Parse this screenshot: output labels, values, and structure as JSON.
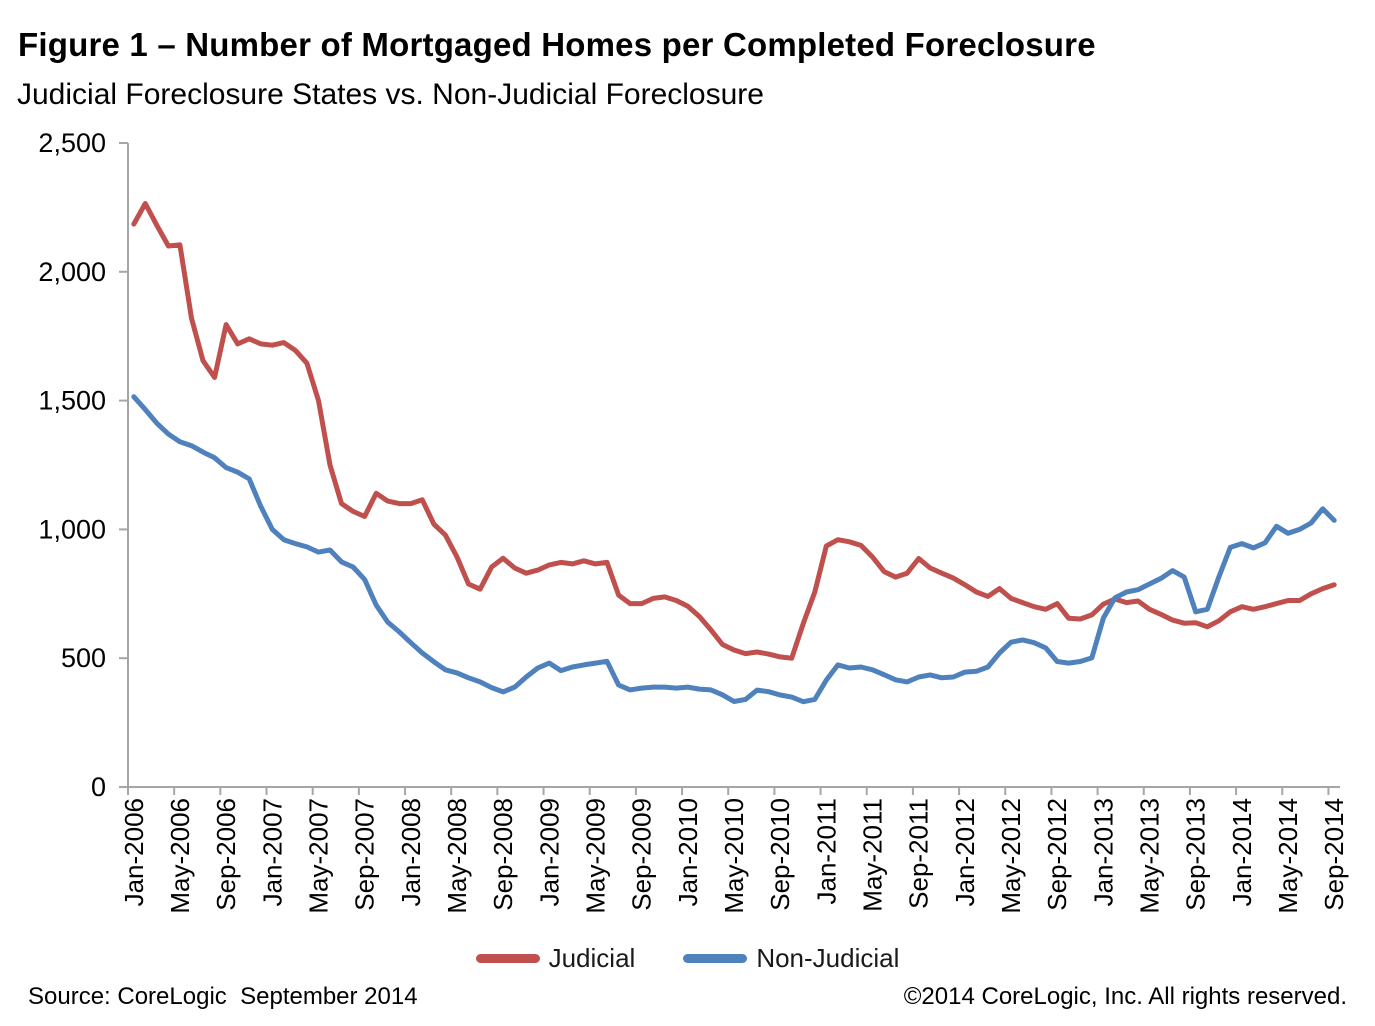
{
  "figure": {
    "title": "Figure 1 – Number of Mortgaged Homes per Completed Foreclosure",
    "subtitle": "Judicial Foreclosure States vs. Non-Judicial Foreclosure"
  },
  "legend": {
    "items": [
      {
        "label": "Judicial",
        "color": "#C0504D"
      },
      {
        "label": "Non-Judicial",
        "color": "#4F81BD"
      }
    ]
  },
  "footer": {
    "source": "Source: CoreLogic  September 2014",
    "copyright": "©2014 CoreLogic, Inc. All rights reserved."
  },
  "chart_data": {
    "type": "line",
    "title": "Figure 1 – Number of Mortgaged Homes per Completed Foreclosure",
    "subtitle": "Judicial Foreclosure States vs. Non-Judicial Foreclosure",
    "grid": false,
    "legend_position": "bottom",
    "axis_color": "#A6A6A6",
    "text_color": "#000000",
    "ylim": [
      0,
      2500
    ],
    "y_tick_values": [
      0,
      500,
      1000,
      1500,
      2000,
      2500
    ],
    "y_tick_labels": [
      "0",
      "500",
      "1,000",
      "1,500",
      "2,000",
      "2,500"
    ],
    "x_tick_every": 4,
    "x_tick_labels": [
      "Jan-2006",
      "May-2006",
      "Sep-2006",
      "Jan-2007",
      "May-2007",
      "Sep-2007",
      "Jan-2008",
      "May-2008",
      "Sep-2008",
      "Jan-2009",
      "May-2009",
      "Sep-2009",
      "Jan-2010",
      "May-2010",
      "Sep-2010",
      "Jan-2011",
      "May-2011",
      "Sep-2011",
      "Jan-2012",
      "May-2012",
      "Sep-2012",
      "Jan-2013",
      "May-2013",
      "Sep-2013",
      "Jan-2014",
      "May-2014",
      "Sep-2014"
    ],
    "categories": [
      "Jan-2006",
      "Feb-2006",
      "Mar-2006",
      "Apr-2006",
      "May-2006",
      "Jun-2006",
      "Jul-2006",
      "Aug-2006",
      "Sep-2006",
      "Oct-2006",
      "Nov-2006",
      "Dec-2006",
      "Jan-2007",
      "Feb-2007",
      "Mar-2007",
      "Apr-2007",
      "May-2007",
      "Jun-2007",
      "Jul-2007",
      "Aug-2007",
      "Sep-2007",
      "Oct-2007",
      "Nov-2007",
      "Dec-2007",
      "Jan-2008",
      "Feb-2008",
      "Mar-2008",
      "Apr-2008",
      "May-2008",
      "Jun-2008",
      "Jul-2008",
      "Aug-2008",
      "Sep-2008",
      "Oct-2008",
      "Nov-2008",
      "Dec-2008",
      "Jan-2009",
      "Feb-2009",
      "Mar-2009",
      "Apr-2009",
      "May-2009",
      "Jun-2009",
      "Jul-2009",
      "Aug-2009",
      "Sep-2009",
      "Oct-2009",
      "Nov-2009",
      "Dec-2009",
      "Jan-2010",
      "Feb-2010",
      "Mar-2010",
      "Apr-2010",
      "May-2010",
      "Jun-2010",
      "Jul-2010",
      "Aug-2010",
      "Sep-2010",
      "Oct-2010",
      "Nov-2010",
      "Dec-2010",
      "Jan-2011",
      "Feb-2011",
      "Mar-2011",
      "Apr-2011",
      "May-2011",
      "Jun-2011",
      "Jul-2011",
      "Aug-2011",
      "Sep-2011",
      "Oct-2011",
      "Nov-2011",
      "Dec-2011",
      "Jan-2012",
      "Feb-2012",
      "Mar-2012",
      "Apr-2012",
      "May-2012",
      "Jun-2012",
      "Jul-2012",
      "Aug-2012",
      "Sep-2012",
      "Oct-2012",
      "Nov-2012",
      "Dec-2012",
      "Jan-2013",
      "Feb-2013",
      "Mar-2013",
      "Apr-2013",
      "May-2013",
      "Jun-2013",
      "Jul-2013",
      "Aug-2013",
      "Sep-2013",
      "Oct-2013",
      "Nov-2013",
      "Dec-2013",
      "Jan-2014",
      "Feb-2014",
      "Mar-2014",
      "Apr-2014",
      "May-2014",
      "Jun-2014",
      "Jul-2014",
      "Aug-2014",
      "Sep-2014"
    ],
    "series": [
      {
        "name": "Judicial",
        "color": "#C0504D",
        "values": [
          2185,
          2265,
          2180,
          2100,
          2105,
          1820,
          1655,
          1590,
          1795,
          1720,
          1740,
          1720,
          1715,
          1725,
          1695,
          1645,
          1500,
          1250,
          1100,
          1070,
          1050,
          1140,
          1110,
          1100,
          1100,
          1115,
          1020,
          978,
          893,
          788,
          768,
          854,
          888,
          850,
          830,
          842,
          862,
          872,
          866,
          878,
          866,
          872,
          745,
          712,
          712,
          732,
          738,
          724,
          702,
          662,
          610,
          553,
          532,
          518,
          524,
          516,
          505,
          500,
          635,
          757,
          935,
          960,
          952,
          938,
          893,
          836,
          815,
          830,
          887,
          850,
          830,
          811,
          785,
          757,
          740,
          770,
          732,
          716,
          700,
          690,
          712,
          655,
          652,
          668,
          710,
          730,
          716,
          722,
          690,
          670,
          648,
          636,
          638,
          622,
          645,
          680,
          700,
          690,
          700,
          712,
          724,
          724,
          750,
          770,
          785
        ]
      },
      {
        "name": "Non-Judicial",
        "color": "#4F81BD",
        "values": [
          1515,
          1465,
          1412,
          1370,
          1340,
          1325,
          1300,
          1278,
          1240,
          1222,
          1196,
          1090,
          1000,
          960,
          945,
          932,
          912,
          920,
          874,
          854,
          806,
          706,
          640,
          602,
          560,
          520,
          486,
          455,
          443,
          424,
          408,
          386,
          369,
          388,
          427,
          462,
          481,
          452,
          466,
          474,
          481,
          488,
          396,
          377,
          384,
          388,
          388,
          384,
          388,
          380,
          377,
          358,
          332,
          340,
          376,
          370,
          357,
          349,
          331,
          340,
          415,
          474,
          462,
          466,
          455,
          436,
          416,
          408,
          427,
          435,
          424,
          427,
          446,
          449,
          466,
          520,
          562,
          571,
          560,
          540,
          487,
          481,
          487,
          501,
          656,
          734,
          757,
          766,
          788,
          810,
          840,
          815,
          680,
          690,
          815,
          930,
          945,
          928,
          948,
          1012,
          985,
          1000,
          1025,
          1080,
          1035
        ]
      }
    ]
  }
}
